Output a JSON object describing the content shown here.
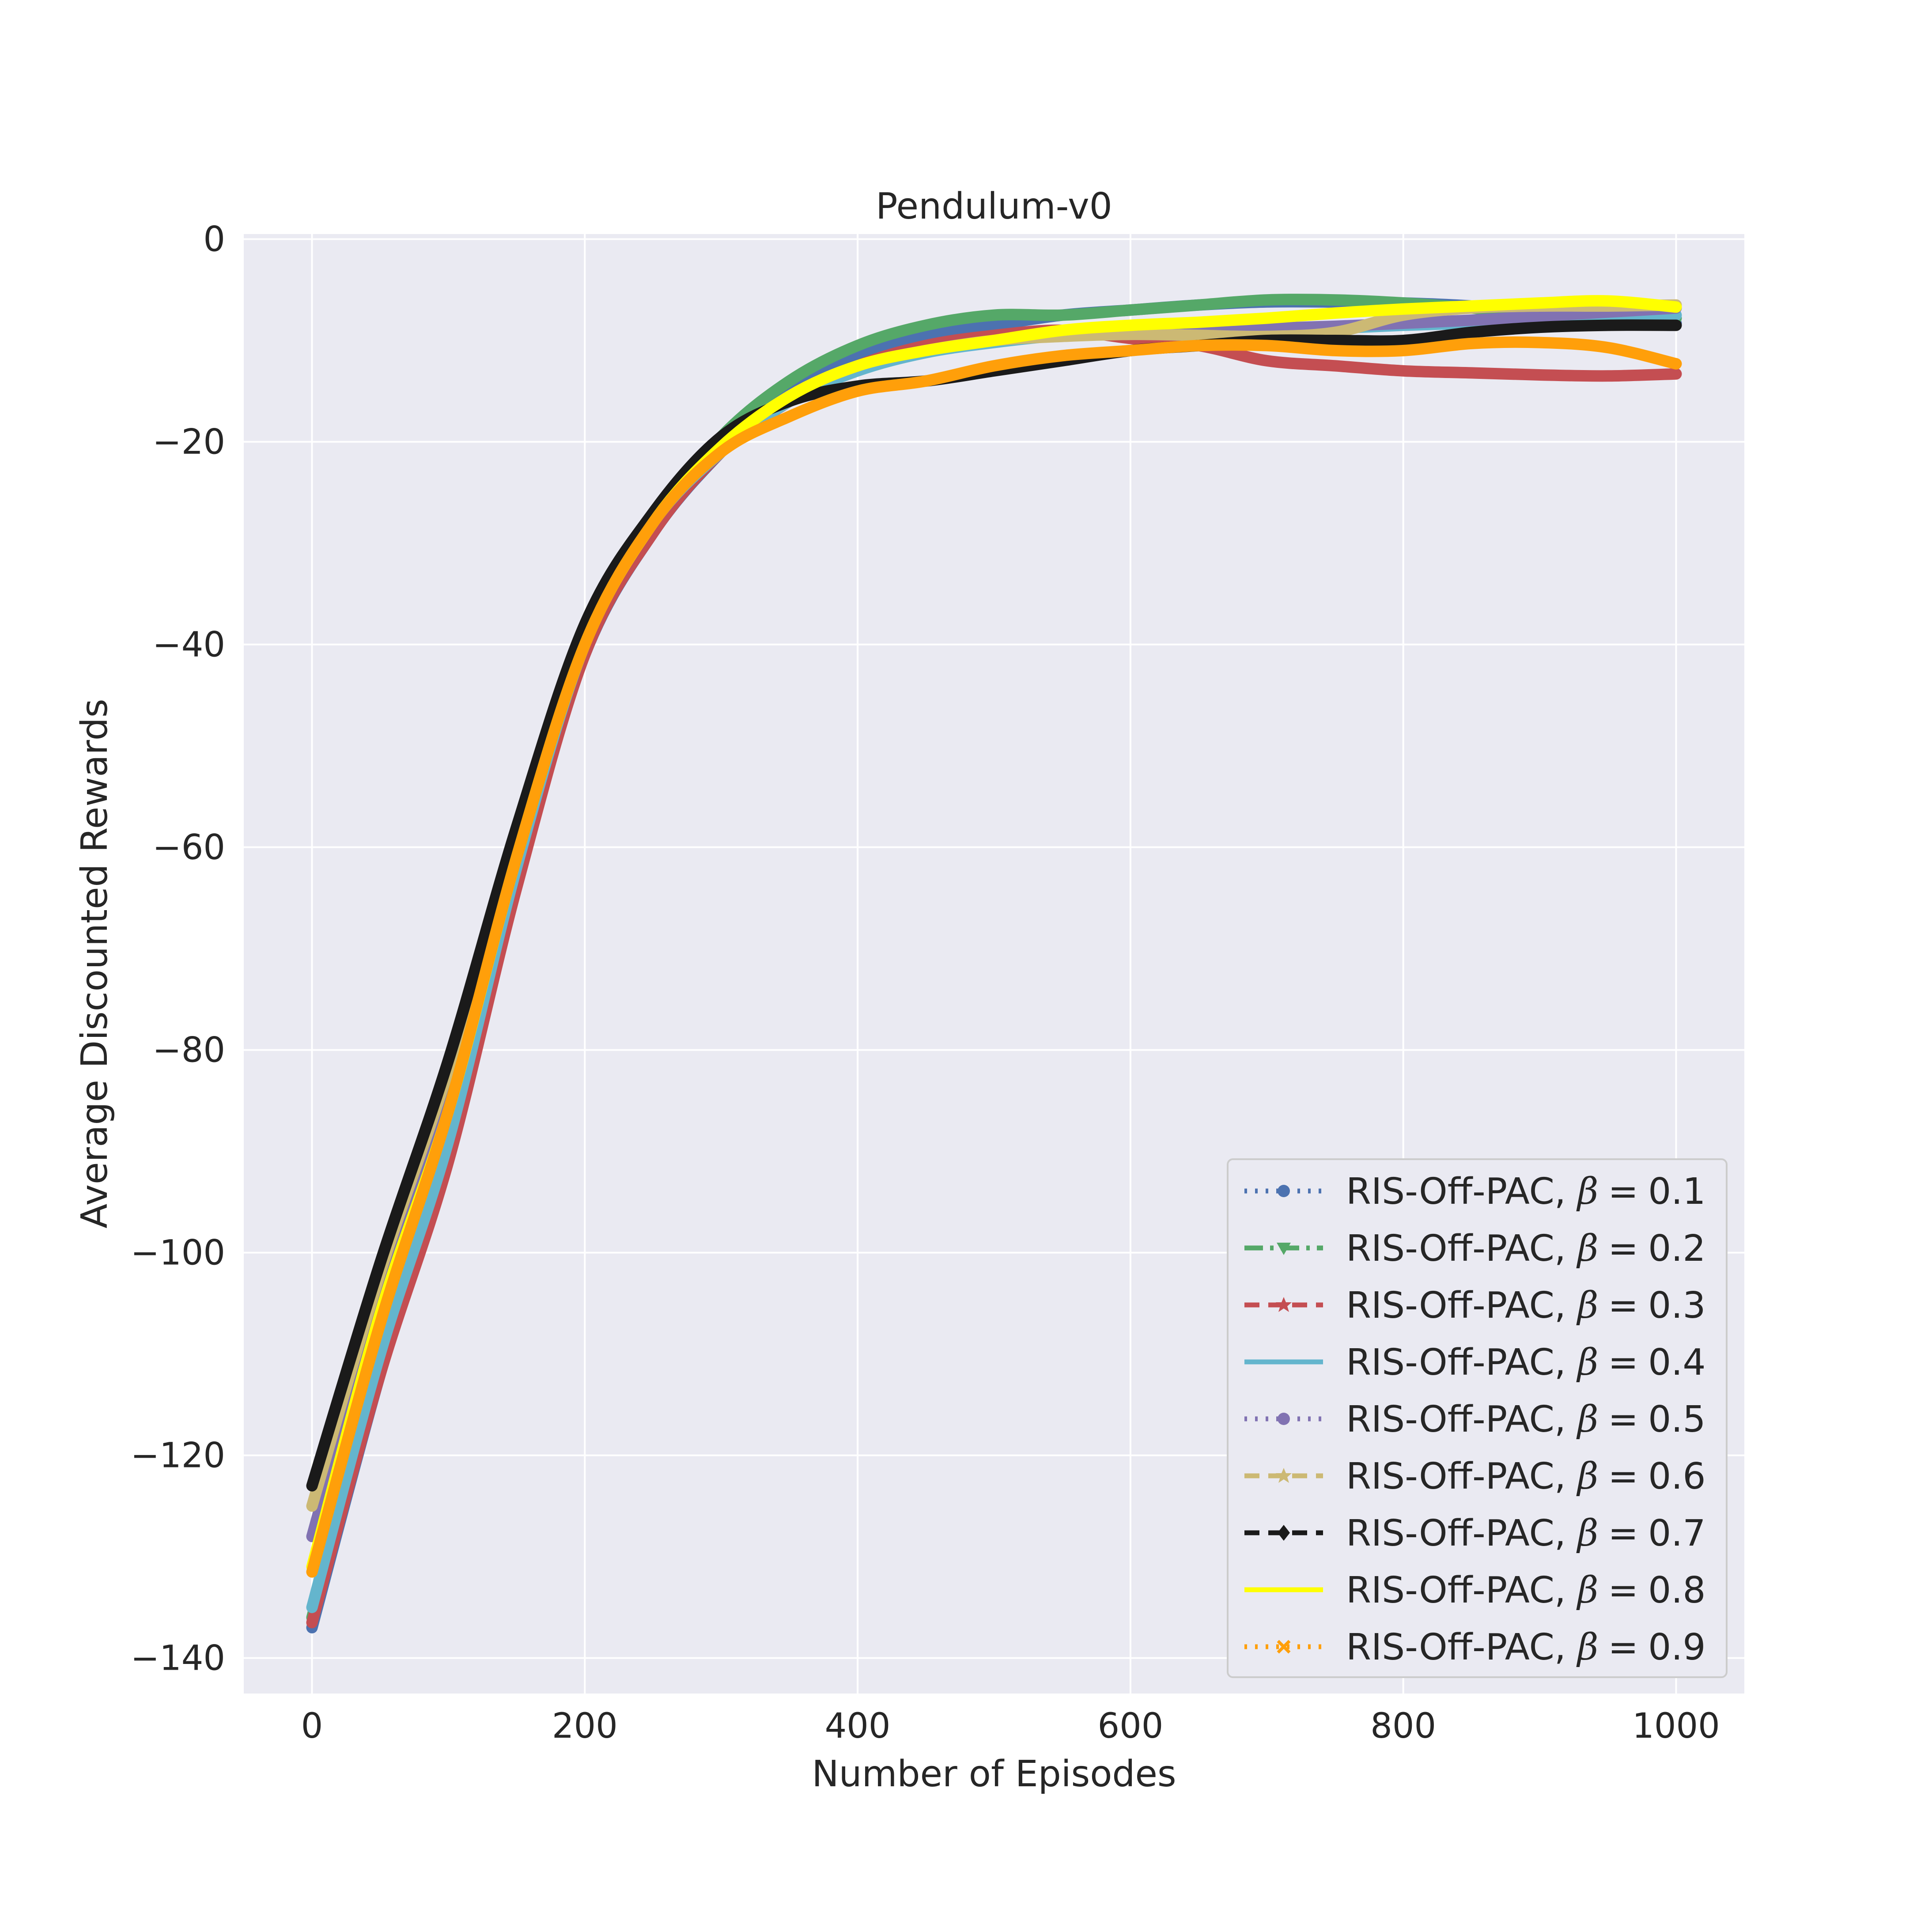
{
  "chart_data": {
    "type": "line",
    "title": "Pendulum-v0",
    "xlabel": "Number of Episodes",
    "ylabel": "Average Discounted Rewards",
    "xlim": [
      -50,
      1050
    ],
    "ylim": [
      -143.5,
      0.5
    ],
    "xticks": [
      0,
      200,
      400,
      600,
      800,
      1000
    ],
    "yticks": [
      0,
      -20,
      -40,
      -60,
      -80,
      -100,
      -120,
      -140
    ],
    "xtick_labels": [
      "0",
      "200",
      "400",
      "600",
      "800",
      "1000"
    ],
    "ytick_labels": [
      "0",
      "−20",
      "−40",
      "−60",
      "−80",
      "−100",
      "−120",
      "−140"
    ],
    "grid": true,
    "background": "#eaeaf2",
    "legend_position": "lower-right",
    "x": [
      0,
      50,
      100,
      150,
      200,
      250,
      300,
      350,
      400,
      450,
      500,
      550,
      600,
      650,
      700,
      750,
      800,
      850,
      900,
      950,
      1000
    ],
    "series": [
      {
        "name": "RIS-Off-PAC, β = 0.1",
        "color": "#4c72b0",
        "values": [
          -137,
          -112,
          -90,
          -63,
          -41,
          -29,
          -21,
          -15,
          -11.5,
          -9.5,
          -8.5,
          -7.5,
          -7,
          -6.5,
          -6.2,
          -6.2,
          -6.3,
          -6.6,
          -7.2,
          -7.8,
          -8.3
        ]
      },
      {
        "name": "RIS-Off-PAC, β = 0.2",
        "color": "#55a868",
        "values": [
          -136,
          -110,
          -88,
          -62,
          -40,
          -28,
          -19.5,
          -14,
          -10.5,
          -8.5,
          -7.5,
          -7.5,
          -7,
          -6.5,
          -6,
          -6,
          -6.3,
          -6.8,
          -7.3,
          -7.8,
          -7.8
        ]
      },
      {
        "name": "RIS-Off-PAC, β = 0.3",
        "color": "#c44e52",
        "values": [
          -136.5,
          -112,
          -91,
          -64,
          -41,
          -29,
          -21,
          -16,
          -12.5,
          -10.5,
          -9.5,
          -9,
          -9.8,
          -10.5,
          -12,
          -12.5,
          -13,
          -13.2,
          -13.4,
          -13.5,
          -13.3
        ]
      },
      {
        "name": "RIS-Off-PAC, β = 0.4",
        "color": "#64b5cd",
        "values": [
          -135,
          -110,
          -89,
          -62,
          -40,
          -28,
          -21,
          -16,
          -13,
          -11.2,
          -10.2,
          -9.5,
          -9.3,
          -9.2,
          -9,
          -8.8,
          -8.5,
          -8.3,
          -8,
          -7.8,
          -7.5
        ]
      },
      {
        "name": "RIS-Off-PAC, β = 0.5",
        "color": "#8172b2",
        "values": [
          -128,
          -104,
          -84,
          -60,
          -39,
          -27.5,
          -20.5,
          -15.5,
          -12.5,
          -11,
          -10,
          -9.5,
          -9.2,
          -9,
          -8.8,
          -8.6,
          -8.3,
          -8,
          -7.6,
          -7.2,
          -6.8
        ]
      },
      {
        "name": "RIS-Off-PAC, β = 0.6",
        "color": "#ccb974",
        "values": [
          -125,
          -102,
          -82,
          -59,
          -39,
          -27.5,
          -20.5,
          -15.5,
          -12.5,
          -11,
          -10,
          -9.6,
          -9.4,
          -9.5,
          -9.6,
          -9.2,
          -7.5,
          -6.8,
          -6.6,
          -6.6,
          -6.5
        ]
      },
      {
        "name": "RIS-Off-PAC, β = 0.7",
        "color": "#1a1a1a",
        "values": [
          -123,
          -101,
          -81,
          -58,
          -38,
          -27,
          -19.5,
          -16,
          -14.5,
          -14,
          -13,
          -12,
          -11,
          -10.5,
          -10,
          -10,
          -10,
          -9.2,
          -8.7,
          -8.5,
          -8.5
        ]
      },
      {
        "name": "RIS-Off-PAC, β = 0.8",
        "color": "#ffff00",
        "values": [
          -131,
          -106,
          -86,
          -61,
          -40,
          -28,
          -20.5,
          -15.5,
          -12.5,
          -11,
          -10,
          -9,
          -8.5,
          -8.2,
          -7.8,
          -7.3,
          -6.9,
          -6.6,
          -6.3,
          -6.1,
          -6.7
        ]
      },
      {
        "name": "RIS-Off-PAC, β = 0.9",
        "color": "#ff9f0a",
        "values": [
          -131.5,
          -107,
          -86,
          -61,
          -40,
          -28,
          -21,
          -17.5,
          -15,
          -14,
          -12.5,
          -11.5,
          -11,
          -10.5,
          -10.5,
          -11,
          -11,
          -10.3,
          -10.2,
          -10.7,
          -12.3
        ]
      }
    ]
  },
  "legend": {
    "prefix": "RIS-Off-PAC, ",
    "beta_symbol": "β",
    "equals": "=",
    "beta_values": [
      "0.1",
      "0.2",
      "0.3",
      "0.4",
      "0.5",
      "0.6",
      "0.7",
      "0.8",
      "0.9"
    ]
  }
}
